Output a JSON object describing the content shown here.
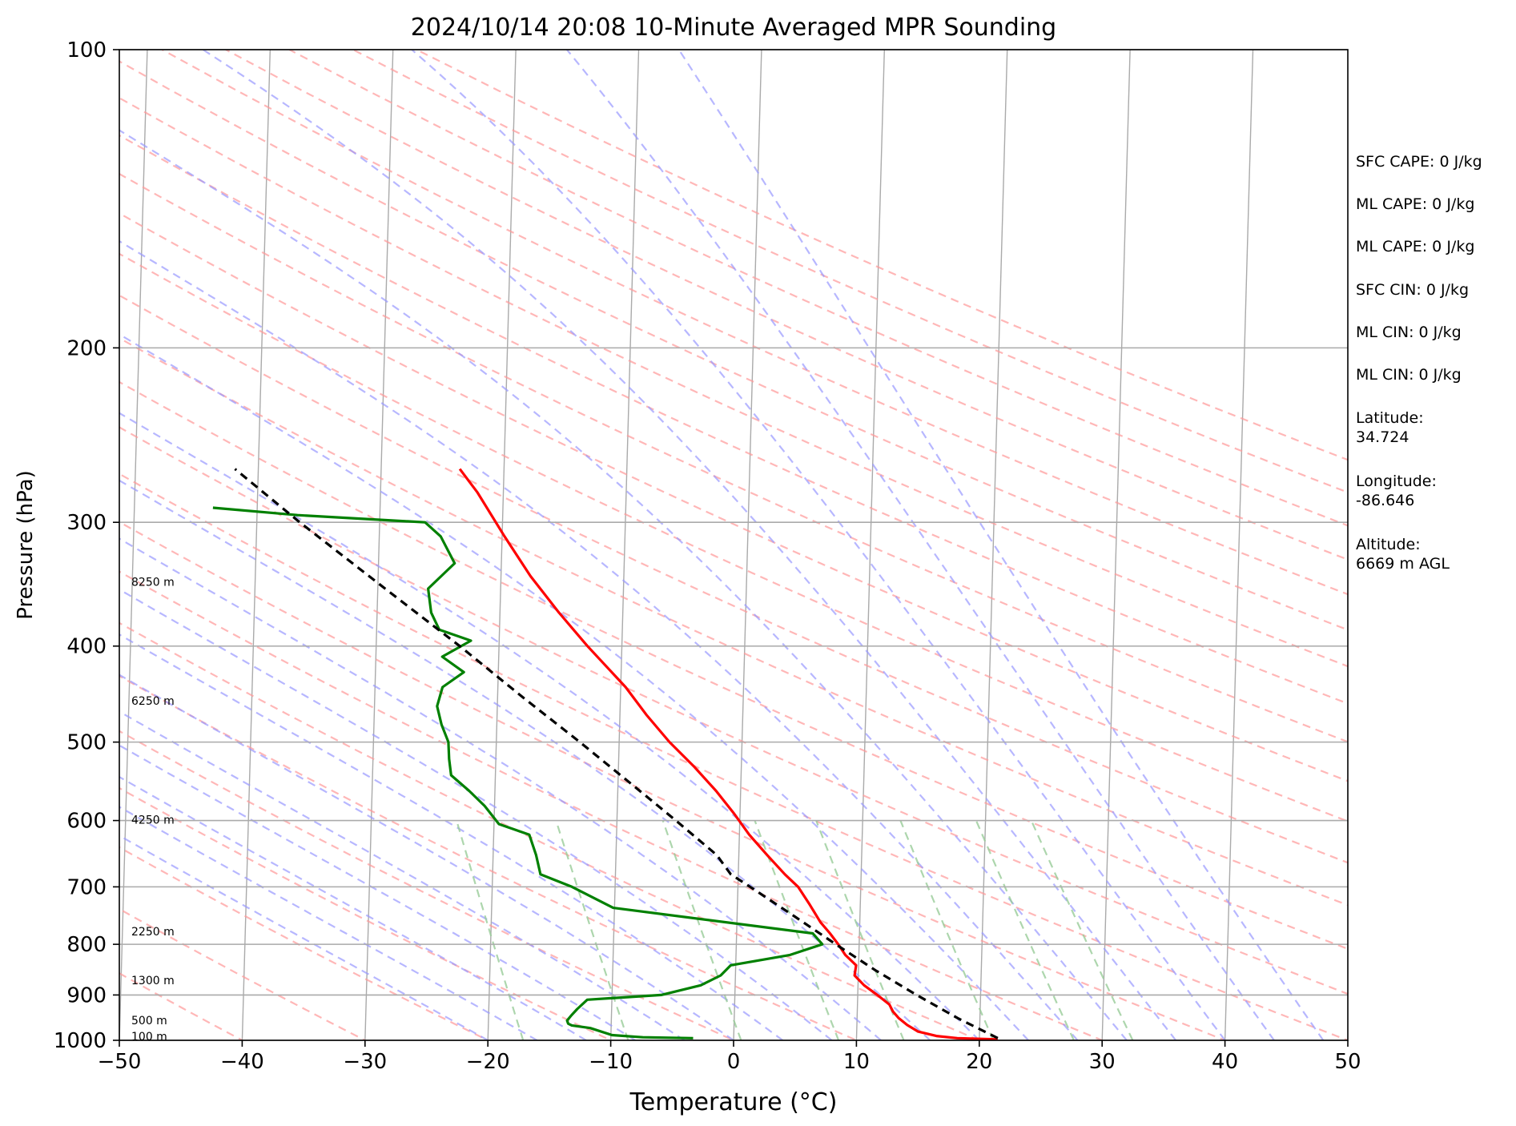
{
  "chart_data": {
    "type": "line",
    "subtype": "skew-t log-p sounding",
    "title": "2024/10/14 20:08 10-Minute Averaged MPR Sounding",
    "xlabel": "Temperature (°C)",
    "ylabel": "Pressure (hPa)",
    "xlim": [
      -50,
      50
    ],
    "ylim": [
      1000,
      100
    ],
    "y_scale": "log",
    "x_ticks": [
      "−50",
      "−40",
      "−30",
      "−20",
      "−10",
      "0",
      "10",
      "20",
      "30",
      "40",
      "50"
    ],
    "x_tick_values": [
      -50,
      -40,
      -30,
      -20,
      -10,
      0,
      10,
      20,
      30,
      40,
      50
    ],
    "y_ticks": [
      "100",
      "200",
      "300",
      "400",
      "500",
      "600",
      "700",
      "800",
      "900",
      "1000"
    ],
    "y_tick_values": [
      100,
      200,
      300,
      400,
      500,
      600,
      700,
      800,
      900,
      1000
    ],
    "grid": "horizontal isobars",
    "skew_isotherm_spacing_C": 10,
    "height_labels": [
      {
        "text": "8250 m",
        "p": 345
      },
      {
        "text": "6250 m",
        "p": 455
      },
      {
        "text": "4250 m",
        "p": 600
      },
      {
        "text": "2250 m",
        "p": 778
      },
      {
        "text": "1300 m",
        "p": 871
      },
      {
        "text": "500 m",
        "p": 956
      },
      {
        "text": "100 m",
        "p": 993
      }
    ],
    "series": [
      {
        "role": "temperature",
        "color": "#ff0000",
        "dash": "solid",
        "points": [
          [
            998,
            21.5
          ],
          [
            995,
            18.2
          ],
          [
            990,
            16.5
          ],
          [
            980,
            15.0
          ],
          [
            965,
            14.1
          ],
          [
            950,
            13.4
          ],
          [
            935,
            12.9
          ],
          [
            920,
            12.6
          ],
          [
            900,
            11.6
          ],
          [
            880,
            10.5
          ],
          [
            860,
            9.7
          ],
          [
            840,
            9.8
          ],
          [
            820,
            8.9
          ],
          [
            800,
            8.3
          ],
          [
            780,
            7.6
          ],
          [
            760,
            6.8
          ],
          [
            730,
            5.9
          ],
          [
            700,
            4.9
          ],
          [
            680,
            3.8
          ],
          [
            650,
            2.3
          ],
          [
            620,
            0.8
          ],
          [
            590,
            -0.5
          ],
          [
            560,
            -2.0
          ],
          [
            530,
            -3.8
          ],
          [
            500,
            -5.9
          ],
          [
            470,
            -7.8
          ],
          [
            440,
            -9.6
          ],
          [
            400,
            -12.8
          ],
          [
            370,
            -15.2
          ],
          [
            340,
            -17.6
          ],
          [
            310,
            -19.8
          ],
          [
            280,
            -22.1
          ],
          [
            265,
            -23.6
          ]
        ]
      },
      {
        "role": "dewpoint",
        "color": "#008000",
        "dash": "solid",
        "points": [
          [
            995,
            -3.3
          ],
          [
            993,
            -7.4
          ],
          [
            988,
            -9.9
          ],
          [
            972,
            -11.7
          ],
          [
            966,
            -13.2
          ],
          [
            962,
            -13.5
          ],
          [
            955,
            -13.6
          ],
          [
            945,
            -13.3
          ],
          [
            930,
            -12.8
          ],
          [
            910,
            -12.0
          ],
          [
            900,
            -6.0
          ],
          [
            880,
            -2.8
          ],
          [
            860,
            -1.2
          ],
          [
            840,
            -0.4
          ],
          [
            820,
            4.4
          ],
          [
            800,
            7.0
          ],
          [
            780,
            6.2
          ],
          [
            735,
            -10.1
          ],
          [
            700,
            -13.5
          ],
          [
            680,
            -16.1
          ],
          [
            650,
            -16.5
          ],
          [
            620,
            -17.1
          ],
          [
            605,
            -19.6
          ],
          [
            580,
            -20.8
          ],
          [
            560,
            -22.1
          ],
          [
            540,
            -23.6
          ],
          [
            520,
            -23.8
          ],
          [
            500,
            -23.9
          ],
          [
            480,
            -24.5
          ],
          [
            460,
            -24.9
          ],
          [
            440,
            -24.5
          ],
          [
            425,
            -22.8
          ],
          [
            410,
            -24.6
          ],
          [
            395,
            -22.3
          ],
          [
            385,
            -24.9
          ],
          [
            370,
            -25.6
          ],
          [
            350,
            -25.9
          ],
          [
            330,
            -23.8
          ],
          [
            310,
            -25.0
          ],
          [
            300,
            -26.3
          ],
          [
            295,
            -36.7
          ],
          [
            290,
            -43.6
          ]
        ]
      },
      {
        "role": "parcel-profile",
        "color": "#000000",
        "dash": "dashed",
        "points": [
          [
            995,
            21.5
          ],
          [
            950,
            18.2
          ],
          [
            900,
            14.8
          ],
          [
            850,
            11.4
          ],
          [
            800,
            8.1
          ],
          [
            750,
            4.7
          ],
          [
            700,
            1.0
          ],
          [
            680,
            -0.6
          ],
          [
            650,
            -1.8
          ],
          [
            600,
            -5.2
          ],
          [
            550,
            -9.0
          ],
          [
            500,
            -13.2
          ],
          [
            450,
            -18.0
          ],
          [
            400,
            -23.2
          ],
          [
            350,
            -29.4
          ],
          [
            300,
            -36.5
          ],
          [
            265,
            -41.9
          ]
        ]
      }
    ],
    "background_lines": {
      "dry_adiabats_color": "#ff9999",
      "moist_adiabats_color": "#9999ff",
      "mixing_ratio_color": "#99cc99",
      "isotherm_color": "#aaaaaa"
    }
  },
  "indices": [
    "SFC CAPE: 0 J/kg",
    "ML CAPE: 0 J/kg",
    "ML CAPE: 0 J/kg",
    "SFC CIN: 0 J/kg",
    "ML CIN: 0 J/kg",
    "ML CIN: 0 J/kg",
    "Latitude:\n34.724",
    "Longitude:\n-86.646",
    "Altitude:\n6669 m AGL"
  ]
}
